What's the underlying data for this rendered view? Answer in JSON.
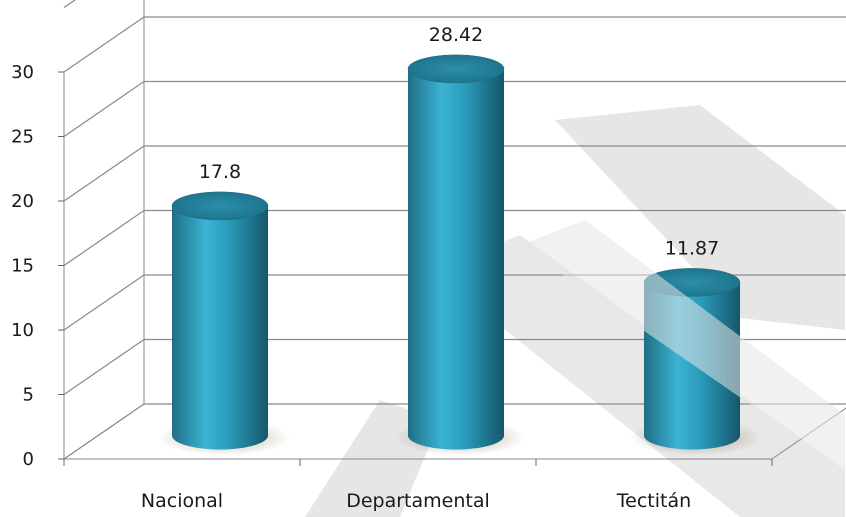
{
  "chart_data": {
    "type": "bar",
    "categories": [
      "Nacional",
      "Departamental",
      "Tectitán"
    ],
    "values": [
      17.8,
      28.42,
      11.87
    ],
    "data_labels": [
      "17.8",
      "28.42",
      "11.87"
    ],
    "ylim": [
      0,
      30
    ],
    "y_ticks": [
      0,
      5,
      10,
      15,
      20,
      25,
      30
    ],
    "grid": true,
    "legend": "none",
    "style": "3d-cylinder",
    "bar_color": "#2e9fbd",
    "watermark_color": "#e6e6e6"
  }
}
